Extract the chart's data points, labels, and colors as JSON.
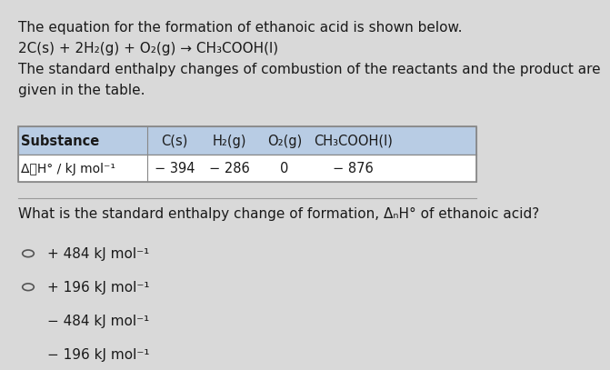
{
  "bg_color": "#d9d9d9",
  "text_color": "#1a1a1a",
  "intro_line1": "The equation for the formation of ethanoic acid is shown below.",
  "intro_line2": "2C(s) + 2H₂(g) + O₂(g) → CH₃COOH(l)",
  "intro_line3": "The standard enthalpy changes of combustion of the reactants and the product are",
  "intro_line4": "given in the table.",
  "table_header": [
    "Substance",
    "C(s)",
    "H₂(g)",
    "O₂(g)",
    "CH₃COOH(l)"
  ],
  "table_row_label": "ΔⰉH° / kJ mol⁻¹",
  "table_row_values": [
    "− 394",
    "− 286",
    "0",
    "− 876"
  ],
  "question": "What is the standard enthalpy change of formation, ΔₙH° of ethanoic acid?",
  "options": [
    "+ 484 kJ mol⁻¹",
    "+ 196 kJ mol⁻¹",
    "− 484 kJ mol⁻¹",
    "− 196 kJ mol⁻¹"
  ],
  "table_header_bg": "#b8cce4",
  "table_row_bg": "#ffffff",
  "table_border_color": "#888888",
  "divider_color": "#999999",
  "circle_color": "#555555",
  "font_size_text": 11,
  "font_size_table": 10.5,
  "font_size_options": 11
}
